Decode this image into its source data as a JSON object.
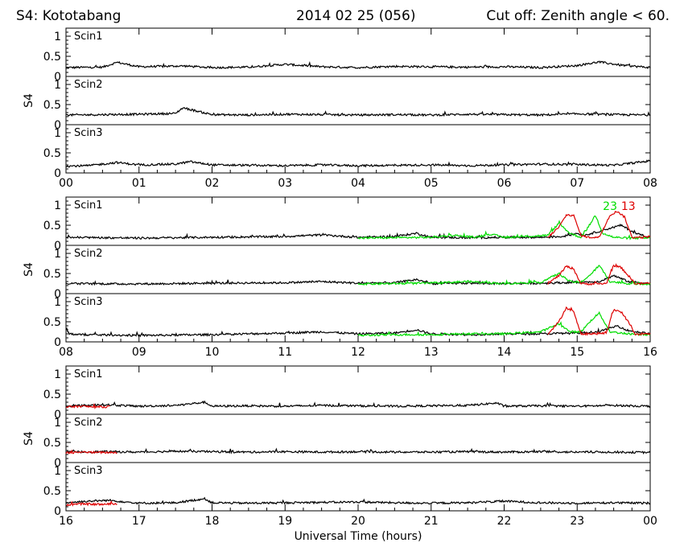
{
  "header": {
    "left": "S4: Kototabang",
    "center": "2014 02 25 (056)",
    "right": "Cut off: Zenith angle < 60."
  },
  "chart_data": {
    "type": "line",
    "xlabel": "Universal Time (hours)",
    "ylabel": "S4",
    "ylim": [
      0,
      1.2
    ],
    "yticks": [
      0,
      0.5,
      1
    ],
    "ytick_labels": [
      "0",
      "0.5",
      "1"
    ],
    "grid": false,
    "sections": [
      {
        "xlim": [
          0,
          8
        ],
        "xtick_labels": [
          "00",
          "01",
          "02",
          "03",
          "04",
          "05",
          "06",
          "07",
          "08"
        ],
        "panels": [
          {
            "label": "Scin1",
            "series": [
              {
                "color": "#000000",
                "x": [
                  0,
                  0.5,
                  0.7,
                  1,
                  1.6,
                  2,
                  2.5,
                  3,
                  3.5,
                  4,
                  4.5,
                  5,
                  5.5,
                  6,
                  6.5,
                  7,
                  7.3,
                  7.6,
                  8
                ],
                "y": [
                  0.22,
                  0.23,
                  0.35,
                  0.24,
                  0.26,
                  0.22,
                  0.23,
                  0.3,
                  0.24,
                  0.22,
                  0.25,
                  0.24,
                  0.23,
                  0.24,
                  0.22,
                  0.27,
                  0.36,
                  0.28,
                  0.22
                ]
              }
            ]
          },
          {
            "label": "Scin2",
            "series": [
              {
                "color": "#000000",
                "x": [
                  0,
                  0.5,
                  1,
                  1.5,
                  1.6,
                  2,
                  2.5,
                  3,
                  3.5,
                  4,
                  4.5,
                  5,
                  5.5,
                  6,
                  6.5,
                  7,
                  7.5,
                  8
                ],
                "y": [
                  0.24,
                  0.25,
                  0.26,
                  0.28,
                  0.42,
                  0.25,
                  0.24,
                  0.26,
                  0.25,
                  0.24,
                  0.25,
                  0.24,
                  0.26,
                  0.25,
                  0.24,
                  0.27,
                  0.25,
                  0.24
                ]
              }
            ]
          },
          {
            "label": "Scin3",
            "series": [
              {
                "color": "#000000",
                "x": [
                  0,
                  0.3,
                  0.7,
                  1,
                  1.5,
                  1.7,
                  2,
                  2.5,
                  3,
                  3.5,
                  4,
                  4.5,
                  5,
                  5.5,
                  6,
                  6.5,
                  7,
                  7.5,
                  8
                ],
                "y": [
                  0.17,
                  0.18,
                  0.26,
                  0.2,
                  0.22,
                  0.28,
                  0.2,
                  0.19,
                  0.18,
                  0.2,
                  0.18,
                  0.19,
                  0.2,
                  0.18,
                  0.2,
                  0.22,
                  0.21,
                  0.19,
                  0.3
                ]
              }
            ]
          }
        ]
      },
      {
        "xlim": [
          8,
          16
        ],
        "xtick_labels": [
          "08",
          "09",
          "10",
          "11",
          "12",
          "13",
          "14",
          "15",
          "16"
        ],
        "annotations": [
          {
            "text": "23",
            "color": "#00dd00",
            "x": 15.45,
            "y": 0.88
          },
          {
            "text": "13",
            "color": "#dd0000",
            "x": 15.7,
            "y": 0.88
          }
        ],
        "panels": [
          {
            "label": "Scin1",
            "series": [
              {
                "color": "#000000",
                "x": [
                  8,
                  9,
                  10,
                  11,
                  11.5,
                  12,
                  12.5,
                  12.8,
                  13,
                  13.5,
                  14,
                  14.5,
                  14.8,
                  15,
                  15.1,
                  15.4,
                  15.6,
                  15.8,
                  16
                ],
                "y": [
                  0.2,
                  0.18,
                  0.2,
                  0.22,
                  0.26,
                  0.2,
                  0.22,
                  0.3,
                  0.2,
                  0.19,
                  0.2,
                  0.2,
                  0.22,
                  0.3,
                  0.25,
                  0.4,
                  0.5,
                  0.3,
                  0.2
                ]
              },
              {
                "color": "#00dd00",
                "x": [
                  12,
                  12.5,
                  13,
                  13.3,
                  13.6,
                  13.8,
                  14,
                  14.3,
                  14.6,
                  14.75,
                  14.9,
                  15.05,
                  15.15,
                  15.25,
                  15.35,
                  15.5,
                  15.7,
                  16
                ],
                "y": [
                  0.18,
                  0.19,
                  0.2,
                  0.25,
                  0.2,
                  0.28,
                  0.2,
                  0.22,
                  0.25,
                  0.55,
                  0.3,
                  0.2,
                  0.45,
                  0.75,
                  0.3,
                  0.2,
                  0.18,
                  0.18
                ]
              },
              {
                "color": "#dd0000",
                "x": [
                  14.6,
                  14.75,
                  14.85,
                  14.95,
                  15.05,
                  15.15,
                  15.3,
                  15.45,
                  15.55,
                  15.65,
                  15.75,
                  15.9,
                  16
                ],
                "y": [
                  0.2,
                  0.45,
                  0.75,
                  0.75,
                  0.25,
                  0.2,
                  0.2,
                  0.75,
                  0.85,
                  0.7,
                  0.2,
                  0.2,
                  0.22
                ]
              }
            ]
          },
          {
            "label": "Scin2",
            "series": [
              {
                "color": "#000000",
                "x": [
                  8,
                  9,
                  10,
                  11,
                  11.5,
                  12,
                  12.5,
                  12.8,
                  13,
                  13.5,
                  14,
                  14.5,
                  15,
                  15.3,
                  15.5,
                  15.7,
                  16
                ],
                "y": [
                  0.25,
                  0.24,
                  0.26,
                  0.27,
                  0.3,
                  0.26,
                  0.27,
                  0.35,
                  0.25,
                  0.26,
                  0.25,
                  0.26,
                  0.28,
                  0.3,
                  0.45,
                  0.3,
                  0.25
                ]
              },
              {
                "color": "#00dd00",
                "x": [
                  12,
                  12.5,
                  13,
                  13.5,
                  14,
                  14.5,
                  14.75,
                  14.9,
                  15.05,
                  15.2,
                  15.3,
                  15.45,
                  15.7,
                  16
                ],
                "y": [
                  0.24,
                  0.25,
                  0.26,
                  0.3,
                  0.25,
                  0.28,
                  0.5,
                  0.3,
                  0.28,
                  0.5,
                  0.7,
                  0.3,
                  0.25,
                  0.24
                ]
              },
              {
                "color": "#dd0000",
                "x": [
                  14.6,
                  14.75,
                  14.85,
                  14.95,
                  15.05,
                  15.2,
                  15.4,
                  15.5,
                  15.6,
                  15.7,
                  15.8,
                  16
                ],
                "y": [
                  0.25,
                  0.45,
                  0.68,
                  0.62,
                  0.25,
                  0.24,
                  0.25,
                  0.7,
                  0.65,
                  0.45,
                  0.24,
                  0.26
                ]
              }
            ]
          },
          {
            "label": "Scin3",
            "series": [
              {
                "color": "#000000",
                "x": [
                  8,
                  8.05,
                  8.2,
                  9,
                  10,
                  11,
                  11.5,
                  12,
                  12.5,
                  12.8,
                  13,
                  13.5,
                  14,
                  14.5,
                  15,
                  15.3,
                  15.55,
                  15.7,
                  16
                ],
                "y": [
                  0.3,
                  0.2,
                  0.18,
                  0.16,
                  0.18,
                  0.22,
                  0.25,
                  0.2,
                  0.22,
                  0.3,
                  0.2,
                  0.18,
                  0.2,
                  0.2,
                  0.22,
                  0.25,
                  0.4,
                  0.28,
                  0.2
                ]
              },
              {
                "color": "#00dd00",
                "x": [
                  12,
                  12.5,
                  13,
                  13.5,
                  14,
                  14.5,
                  14.75,
                  14.9,
                  15.05,
                  15.2,
                  15.3,
                  15.45,
                  15.7,
                  16
                ],
                "y": [
                  0.16,
                  0.18,
                  0.18,
                  0.2,
                  0.2,
                  0.25,
                  0.45,
                  0.25,
                  0.25,
                  0.55,
                  0.72,
                  0.25,
                  0.2,
                  0.18
                ]
              },
              {
                "color": "#dd0000",
                "x": [
                  14.6,
                  14.75,
                  14.85,
                  14.95,
                  15.05,
                  15.2,
                  15.4,
                  15.5,
                  15.6,
                  15.7,
                  15.8,
                  16
                ],
                "y": [
                  0.2,
                  0.5,
                  0.85,
                  0.75,
                  0.2,
                  0.2,
                  0.22,
                  0.8,
                  0.75,
                  0.5,
                  0.18,
                  0.2
                ]
              }
            ]
          }
        ]
      },
      {
        "xlim": [
          16,
          24
        ],
        "xtick_labels": [
          "16",
          "17",
          "18",
          "19",
          "20",
          "21",
          "22",
          "23",
          "00"
        ],
        "panels": [
          {
            "label": "Scin1",
            "series": [
              {
                "color": "#000000",
                "x": [
                  16,
                  16.5,
                  17,
                  17.5,
                  17.9,
                  18,
                  18.5,
                  19,
                  19.5,
                  20,
                  20.5,
                  21,
                  21.5,
                  21.9,
                  22,
                  22.5,
                  23,
                  23.5,
                  24
                ],
                "y": [
                  0.2,
                  0.24,
                  0.2,
                  0.22,
                  0.3,
                  0.2,
                  0.21,
                  0.2,
                  0.22,
                  0.21,
                  0.2,
                  0.21,
                  0.22,
                  0.28,
                  0.2,
                  0.21,
                  0.2,
                  0.22,
                  0.2
                ]
              },
              {
                "color": "#dd0000",
                "x": [
                  16,
                  16.2,
                  16.4,
                  16.6
                ],
                "y": [
                  0.18,
                  0.2,
                  0.18,
                  0.19
                ]
              }
            ]
          },
          {
            "label": "Scin2",
            "series": [
              {
                "color": "#000000",
                "x": [
                  16,
                  16.5,
                  17,
                  17.5,
                  18,
                  18.5,
                  19,
                  19.5,
                  20,
                  20.5,
                  21,
                  21.5,
                  22,
                  22.5,
                  23,
                  23.5,
                  24
                ],
                "y": [
                  0.26,
                  0.27,
                  0.26,
                  0.28,
                  0.27,
                  0.26,
                  0.27,
                  0.26,
                  0.27,
                  0.26,
                  0.26,
                  0.27,
                  0.26,
                  0.27,
                  0.26,
                  0.26,
                  0.25
                ]
              },
              {
                "color": "#dd0000",
                "x": [
                  16,
                  16.2,
                  16.4,
                  16.7
                ],
                "y": [
                  0.24,
                  0.26,
                  0.25,
                  0.25
                ]
              }
            ]
          },
          {
            "label": "Scin3",
            "series": [
              {
                "color": "#000000",
                "x": [
                  16,
                  16.3,
                  16.6,
                  17,
                  17.5,
                  17.9,
                  18,
                  18.5,
                  19,
                  19.5,
                  20,
                  20.5,
                  21,
                  21.5,
                  22,
                  22.5,
                  23,
                  23.5,
                  24
                ],
                "y": [
                  0.2,
                  0.24,
                  0.26,
                  0.19,
                  0.2,
                  0.3,
                  0.2,
                  0.19,
                  0.2,
                  0.21,
                  0.22,
                  0.2,
                  0.19,
                  0.2,
                  0.24,
                  0.2,
                  0.19,
                  0.2,
                  0.19
                ]
              },
              {
                "color": "#dd0000",
                "x": [
                  16,
                  16.2,
                  16.5,
                  16.7
                ],
                "y": [
                  0.15,
                  0.17,
                  0.16,
                  0.17
                ]
              }
            ]
          }
        ]
      }
    ]
  }
}
